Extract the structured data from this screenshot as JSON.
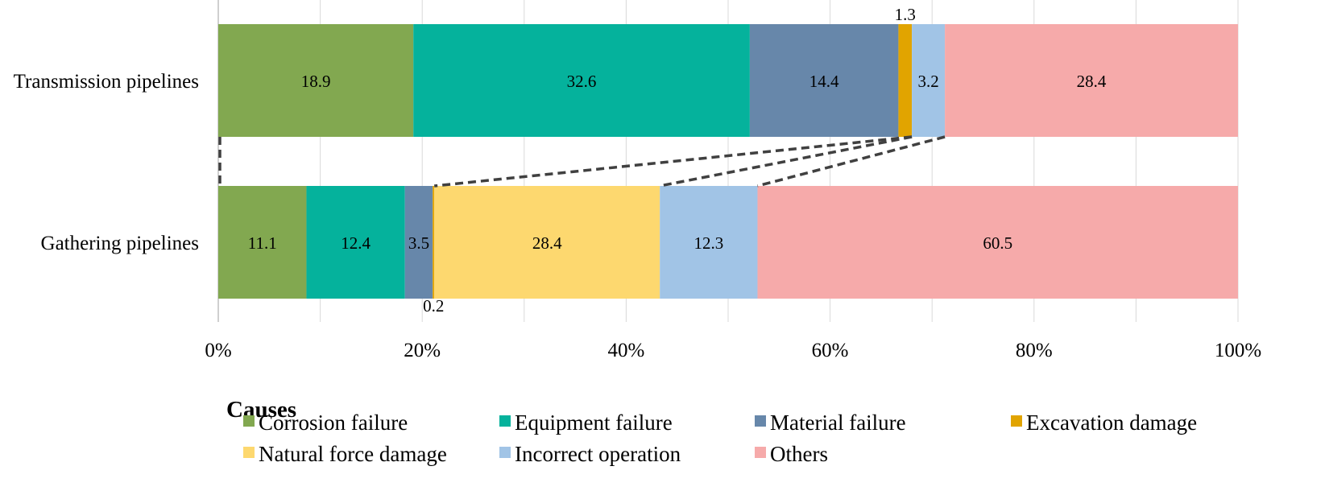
{
  "chart_data": {
    "type": "bar",
    "orientation": "horizontal",
    "stacked": true,
    "normalized": true,
    "categories": [
      "Transmission pipelines",
      "Gathering pipelines"
    ],
    "series": [
      {
        "name": "Corrosion failure",
        "color": "#82a850",
        "values": [
          18.9,
          11.1
        ]
      },
      {
        "name": "Equipment failure",
        "color": "#05b29c",
        "values": [
          32.6,
          12.4
        ]
      },
      {
        "name": "Material failure",
        "color": "#6787aa",
        "values": [
          14.4,
          3.5
        ]
      },
      {
        "name": "Excavation damage",
        "color": "#e1a400",
        "values": [
          1.3,
          0.2
        ]
      },
      {
        "name": "Natural force damage",
        "color": "#fdd86f",
        "values": [
          null,
          28.4
        ]
      },
      {
        "name": "Incorrect operation",
        "color": "#a1c4e6",
        "values": [
          3.2,
          12.3
        ]
      },
      {
        "name": "Others",
        "color": "#f6aaaa",
        "values": [
          28.4,
          60.5
        ]
      }
    ],
    "xaxis": {
      "ticks": [
        "0%",
        "20%",
        "40%",
        "60%",
        "80%",
        "100%"
      ],
      "range": [
        0,
        100
      ]
    },
    "title": "",
    "xlabel": "",
    "ylabel": "",
    "grid": true,
    "legend": {
      "title": "Causes",
      "position": "bottom"
    },
    "connectors": "dashed lines linking segment boundaries between the two bars"
  }
}
